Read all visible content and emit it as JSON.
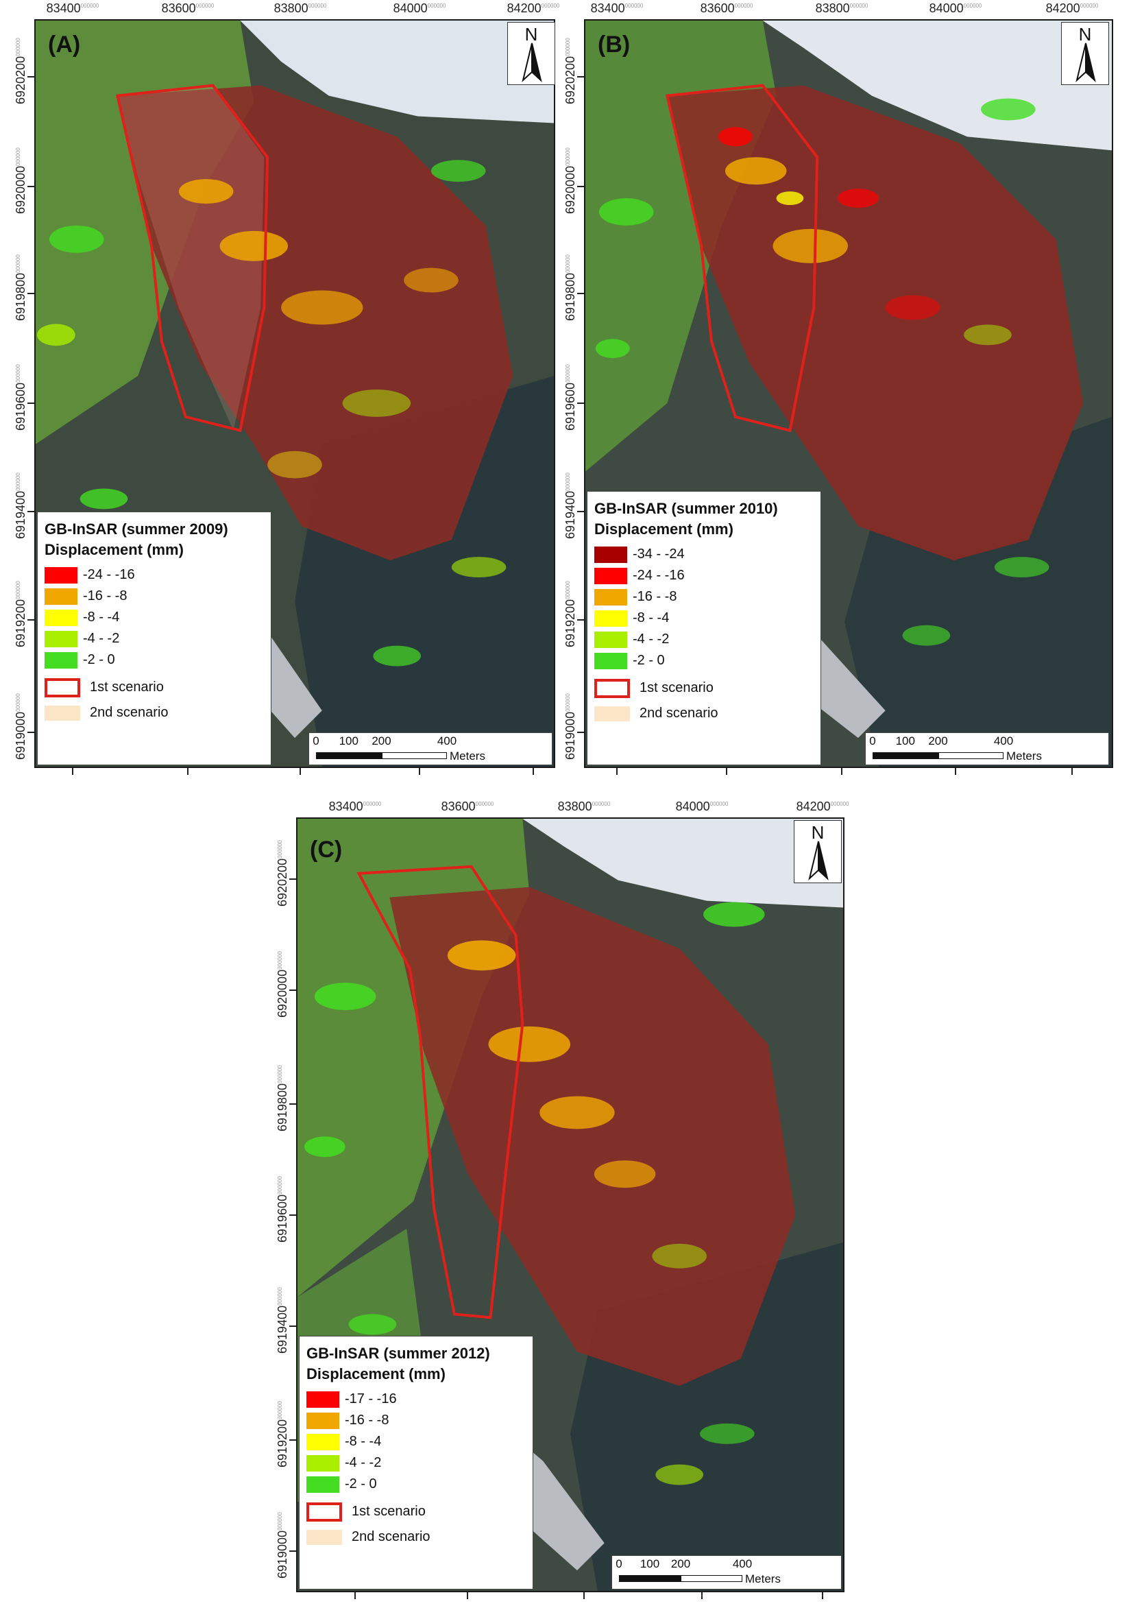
{
  "panels": [
    {
      "label": "(A)",
      "legend_title_1": "GB-InSAR (summer 2009)",
      "legend_title_2": "Displacement (mm)",
      "classes": [
        {
          "label": "-24 - -16",
          "color": "#ff0000"
        },
        {
          "label": "-16 - -8",
          "color": "#f0a800"
        },
        {
          "label": "-8 - -4",
          "color": "#ffff00"
        },
        {
          "label": "-4 - -2",
          "color": "#aaee00"
        },
        {
          "label": "-2 - 0",
          "color": "#44dd22"
        }
      ]
    },
    {
      "label": "(B)",
      "legend_title_1": "GB-InSAR (summer 2010)",
      "legend_title_2": "Displacement (mm)",
      "classes": [
        {
          "label": "-34 - -24",
          "color": "#a80000"
        },
        {
          "label": "-24 - -16",
          "color": "#ff0000"
        },
        {
          "label": "-16 - -8",
          "color": "#f0a800"
        },
        {
          "label": "-8 - -4",
          "color": "#ffff00"
        },
        {
          "label": "-4 - -2",
          "color": "#aaee00"
        },
        {
          "label": "-2 - 0",
          "color": "#44dd22"
        }
      ]
    },
    {
      "label": "(C)",
      "legend_title_1": "GB-InSAR (summer 2012)",
      "legend_title_2": "Displacement (mm)",
      "classes": [
        {
          "label": "-17 - -16",
          "color": "#ff0000"
        },
        {
          "label": "-16 - -8",
          "color": "#f0a800"
        },
        {
          "label": "-8 - -4",
          "color": "#ffff00"
        },
        {
          "label": "-4 - -2",
          "color": "#aaee00"
        },
        {
          "label": "-2 - 0",
          "color": "#44dd22"
        }
      ]
    }
  ],
  "scenario_1": "1st scenario",
  "scenario_2": "2nd scenario",
  "scenario_1_color": "#e0201b",
  "scenario_2_color": "#fde5c8",
  "north_label": "N",
  "scale_labels": [
    "0",
    "100",
    "200",
    "400"
  ],
  "scale_unit": "Meters",
  "x_ticks": [
    "83400",
    "83600",
    "83800",
    "84000",
    "84200"
  ],
  "y_ticks": [
    "6920200",
    "6920000",
    "6919800",
    "6919600",
    "6919400",
    "6919200",
    "6919000"
  ],
  "tick_suffix": "000000"
}
